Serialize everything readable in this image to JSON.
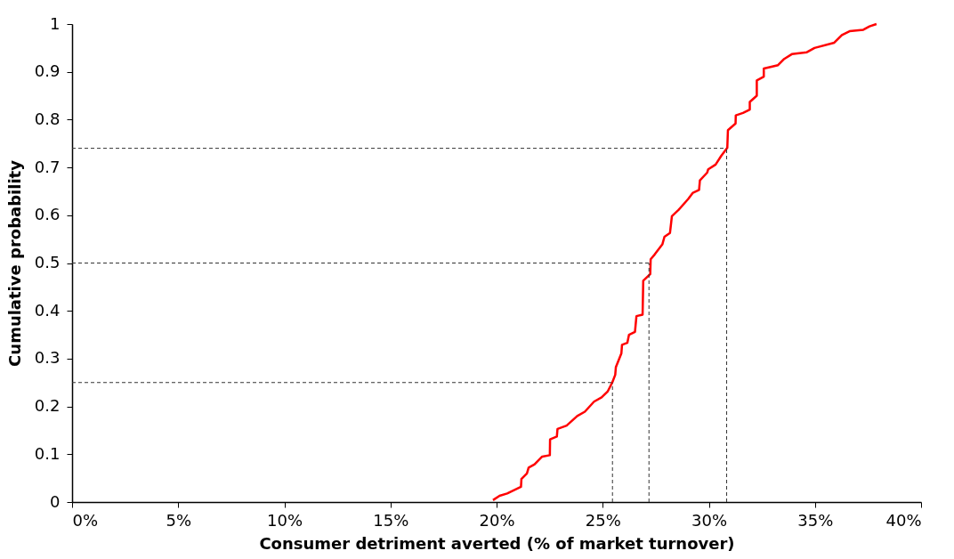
{
  "chart_data": {
    "type": "line",
    "xlabel": "Consumer detriment averted (% of market turnover)",
    "ylabel": "Cumulative probability",
    "x": [
      19.83,
      20.14,
      20.5,
      21.15,
      21.17,
      21.43,
      21.51,
      21.79,
      22.15,
      22.51,
      22.52,
      22.84,
      22.87,
      23.3,
      23.8,
      24.16,
      24.59,
      24.95,
      25.23,
      25.45,
      25.59,
      25.62,
      25.88,
      25.91,
      26.16,
      26.24,
      26.52,
      26.59,
      26.88,
      26.91,
      27.24,
      27.26,
      27.45,
      27.81,
      27.91,
      28.17,
      28.26,
      28.57,
      29.03,
      29.25,
      29.54,
      29.58,
      29.92,
      29.97,
      30.32,
      30.58,
      30.87,
      30.9,
      31.26,
      31.27,
      31.61,
      31.93,
      31.93,
      32.26,
      32.26,
      32.59,
      32.59,
      33.26,
      33.55,
      33.91,
      34.62,
      34.98,
      35.91,
      36.27,
      36.63,
      37.28,
      37.57,
      37.9
    ],
    "series": [
      {
        "color": "#ff0000",
        "values": [
          0.004,
          0.013,
          0.018,
          0.032,
          0.048,
          0.06,
          0.072,
          0.079,
          0.095,
          0.098,
          0.131,
          0.137,
          0.153,
          0.16,
          0.18,
          0.189,
          0.21,
          0.219,
          0.231,
          0.25,
          0.266,
          0.282,
          0.311,
          0.329,
          0.333,
          0.35,
          0.356,
          0.389,
          0.392,
          0.463,
          0.477,
          0.508,
          0.518,
          0.539,
          0.555,
          0.563,
          0.598,
          0.611,
          0.634,
          0.647,
          0.653,
          0.673,
          0.689,
          0.696,
          0.706,
          0.724,
          0.741,
          0.778,
          0.792,
          0.809,
          0.814,
          0.821,
          0.837,
          0.85,
          0.882,
          0.89,
          0.907,
          0.914,
          0.927,
          0.937,
          0.941,
          0.95,
          0.961,
          0.977,
          0.985,
          0.988,
          0.995,
          1.0
        ]
      }
    ],
    "xlim": [
      0,
      40
    ],
    "xticks": [
      {
        "value": 0,
        "label": "0%"
      },
      {
        "value": 5,
        "label": "5%"
      },
      {
        "value": 10,
        "label": "10%"
      },
      {
        "value": 15,
        "label": "15%"
      },
      {
        "value": 20,
        "label": "20%"
      },
      {
        "value": 25,
        "label": "25%"
      },
      {
        "value": 30,
        "label": "30%"
      },
      {
        "value": 35,
        "label": "35%"
      },
      {
        "value": 40,
        "label": "40%"
      }
    ],
    "ylim": [
      0,
      1
    ],
    "yticks": [
      0,
      0.1,
      0.2,
      0.3,
      0.4,
      0.5,
      0.6,
      0.7,
      0.8,
      0.9,
      1
    ],
    "ref_lines": [
      {
        "axis": "y",
        "value": 0.25,
        "color": "#333333",
        "line_style": "dashed"
      },
      {
        "axis": "y",
        "value": 0.5,
        "color": "#333333",
        "line_style": "dashed"
      },
      {
        "axis": "y",
        "value": 0.74,
        "color": "#333333",
        "line_style": "dashed"
      },
      {
        "axis": "x",
        "value": 25.46,
        "color": "#333333",
        "line_style": "dashed"
      },
      {
        "axis": "x",
        "value": 27.18,
        "color": "#333333",
        "line_style": "dashed"
      },
      {
        "axis": "x",
        "value": 30.84,
        "color": "#333333",
        "line_style": "dashed"
      }
    ],
    "grid": false,
    "marker": "none",
    "line_style": "solid"
  }
}
